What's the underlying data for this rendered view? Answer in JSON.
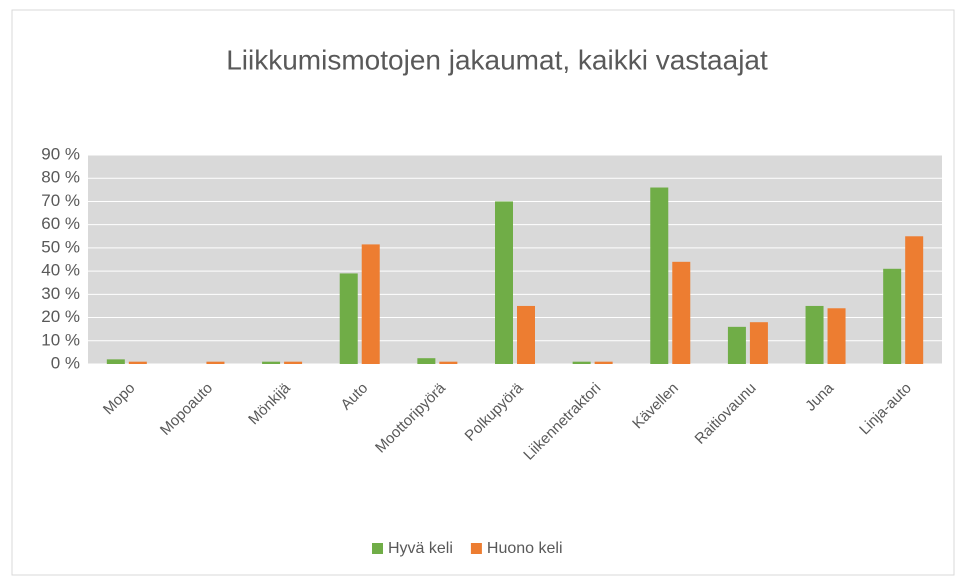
{
  "chart_data": {
    "type": "bar",
    "title": "Liikkumismotojen jakaumat, kaikki vastaajat",
    "categories": [
      "Mopo",
      "Mopoauto",
      "Mönkijä",
      "Auto",
      "Moottoripyörä",
      "Polkupyörä",
      "Liikennetraktori",
      "Kävellen",
      "Raitiovaunu",
      "Juna",
      "Linja-auto"
    ],
    "series": [
      {
        "name": "Hyvä keli",
        "color": "#70ad47",
        "values": [
          2,
          0,
          1,
          39,
          2.5,
          70,
          1,
          76,
          16,
          25,
          41
        ]
      },
      {
        "name": "Huono keli",
        "color": "#ed7d31",
        "values": [
          1,
          1,
          1,
          51.5,
          1,
          25,
          1,
          44,
          18,
          24,
          55
        ]
      }
    ],
    "ylim": [
      0,
      90
    ],
    "yticks": [
      {
        "value": 0,
        "label": "0 %"
      },
      {
        "value": 10,
        "label": "10 %"
      },
      {
        "value": 20,
        "label": "20 %"
      },
      {
        "value": 30,
        "label": "30 %"
      },
      {
        "value": 40,
        "label": "40 %"
      },
      {
        "value": 50,
        "label": "50 %"
      },
      {
        "value": 60,
        "label": "60 %"
      },
      {
        "value": 70,
        "label": "70 %"
      },
      {
        "value": 80,
        "label": "80 %"
      },
      {
        "value": 90,
        "label": "90 %"
      }
    ],
    "grid": true,
    "legend": "bottom"
  }
}
